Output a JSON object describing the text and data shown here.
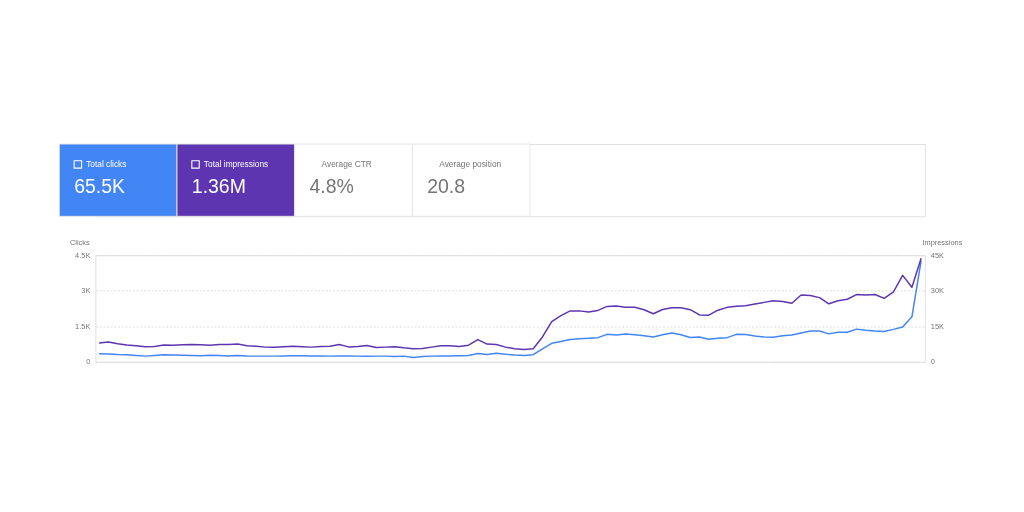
{
  "chart_data": {
    "type": "line",
    "categories": [
      null,
      null,
      null,
      null,
      null,
      null,
      null,
      null,
      null,
      null,
      null,
      null,
      null,
      null,
      null,
      null,
      null,
      null,
      null,
      null,
      null,
      null,
      null,
      null,
      null,
      null,
      null,
      null,
      null,
      null,
      null,
      null,
      null,
      null,
      null,
      null,
      null,
      null,
      null,
      null,
      null,
      null,
      null,
      null,
      null,
      null,
      null,
      null,
      null,
      null,
      null,
      null,
      null,
      null,
      null,
      null,
      null,
      null,
      null,
      null,
      null,
      null,
      null,
      null,
      null,
      null,
      null,
      null,
      null,
      null,
      null,
      null,
      null,
      null,
      null,
      null,
      null,
      null,
      null,
      null,
      null,
      null,
      null,
      null,
      null,
      null,
      null,
      null,
      null,
      null
    ],
    "series": [
      {
        "name": "Total clicks",
        "color": "#4285f4",
        "values": [
          340,
          330,
          310,
          300,
          270,
          240,
          270,
          300,
          290,
          280,
          270,
          260,
          280,
          270,
          250,
          270,
          250,
          240,
          240,
          240,
          250,
          260,
          260,
          250,
          250,
          240,
          250,
          250,
          240,
          230,
          240,
          240,
          220,
          240,
          180,
          220,
          240,
          250,
          250,
          260,
          270,
          350,
          310,
          360,
          320,
          290,
          270,
          300,
          550,
          780,
          860,
          940,
          970,
          990,
          1020,
          1160,
          1130,
          1170,
          1140,
          1100,
          1050,
          1140,
          1220,
          1140,
          1030,
          1050,
          950,
          990,
          1020,
          1160,
          1150,
          1090,
          1050,
          1040,
          1100,
          1130,
          1220,
          1300,
          1300,
          1180,
          1250,
          1250,
          1380,
          1330,
          1300,
          1280,
          1370,
          1470,
          1900,
          4270
        ]
      },
      {
        "name": "Total impressions",
        "color": "#5e35b1",
        "axis": "y2",
        "values": [
          7900,
          8400,
          7600,
          7100,
          6800,
          6400,
          6500,
          7100,
          7000,
          7200,
          7300,
          7200,
          7000,
          7300,
          7300,
          7500,
          6800,
          6600,
          6200,
          6100,
          6400,
          6600,
          6400,
          6200,
          6500,
          6600,
          7300,
          6300,
          6500,
          6900,
          6000,
          6200,
          6400,
          5900,
          5500,
          5600,
          6200,
          6800,
          6800,
          6500,
          7000,
          9400,
          7500,
          7300,
          6200,
          5500,
          5200,
          5500,
          10500,
          17000,
          19500,
          21500,
          21500,
          21000,
          21700,
          23400,
          23600,
          23000,
          23000,
          22000,
          20300,
          22100,
          22800,
          22800,
          22000,
          19800,
          19700,
          21800,
          23000,
          23500,
          23700,
          24400,
          25100,
          25800,
          25500,
          24700,
          28200,
          28000,
          27100,
          24500,
          25800,
          26400,
          28400,
          28200,
          28400,
          26800,
          29500,
          36500,
          31500,
          43700
        ]
      }
    ],
    "ylabel": "Clicks",
    "y2label": "Impressions",
    "ylim": [
      0,
      4500
    ],
    "yticks": [
      0,
      {
        "value": 1500,
        "label": "1.5K"
      },
      {
        "value": 3000,
        "label": "3K"
      },
      {
        "value": 4500,
        "label": "4.5K"
      }
    ],
    "y2lim": [
      0,
      45000
    ],
    "y2ticks": [
      0,
      {
        "value": 15000,
        "label": "15K"
      },
      {
        "value": 30000,
        "label": "30K"
      },
      {
        "value": 45000,
        "label": "45K"
      }
    ],
    "grid": "y",
    "legend": "top left",
    "marker": "none",
    "line_style": "solid",
    "annotations": [
      "65.5K",
      "1.36M",
      "Average CTR",
      "4.8%",
      "Average position",
      "20.8"
    ]
  }
}
